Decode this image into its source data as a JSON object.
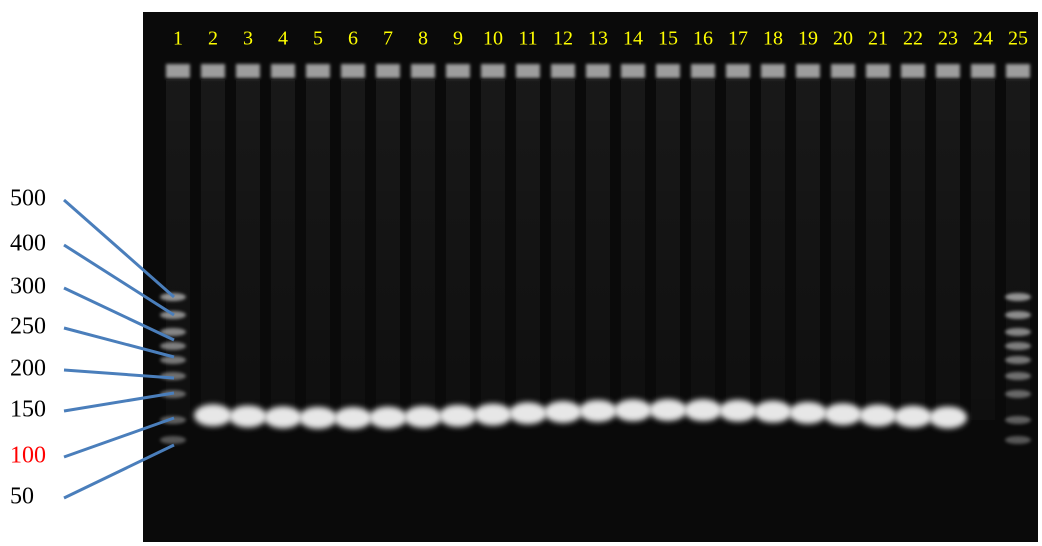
{
  "lanes": [
    "1",
    "2",
    "3",
    "4",
    "5",
    "6",
    "7",
    "8",
    "9",
    "10",
    "11",
    "12",
    "13",
    "14",
    "15",
    "16",
    "17",
    "18",
    "19",
    "20",
    "21",
    "22",
    "23",
    "24",
    "25"
  ],
  "markers": [
    {
      "label": "500",
      "color": "#000000"
    },
    {
      "label": "400",
      "color": "#000000"
    },
    {
      "label": "300",
      "color": "#000000"
    },
    {
      "label": "250",
      "color": "#000000"
    },
    {
      "label": "200",
      "color": "#000000"
    },
    {
      "label": "150",
      "color": "#000000"
    },
    {
      "label": "100",
      "color": "#ff0000"
    },
    {
      "label": "50",
      "color": "#000000"
    }
  ]
}
